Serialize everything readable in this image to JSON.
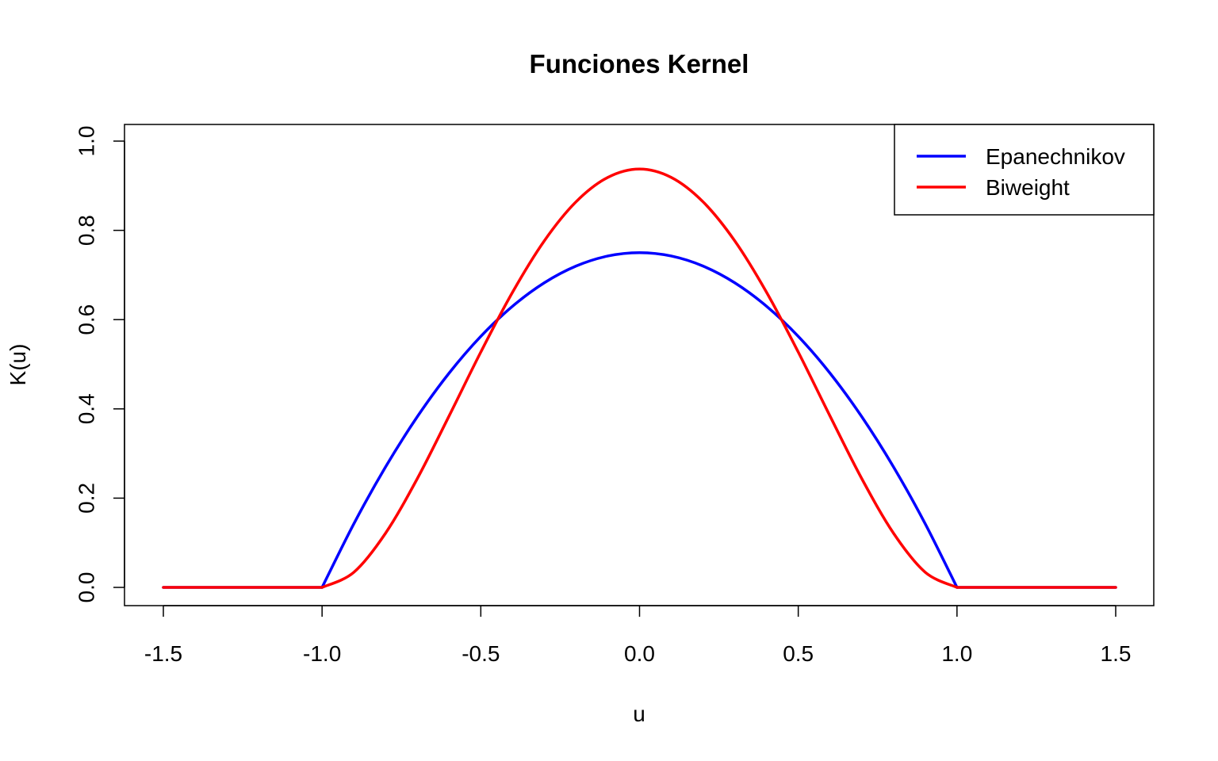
{
  "chart_data": {
    "type": "line",
    "title": "Funciones Kernel",
    "xlabel": "u",
    "ylabel": "K(u)",
    "xlim": [
      -1.5,
      1.5
    ],
    "ylim": [
      0,
      1
    ],
    "x_ticks": [
      "-1.5",
      "-1.0",
      "-0.5",
      "0.0",
      "0.5",
      "1.0",
      "1.5"
    ],
    "y_ticks": [
      "0.0",
      "0.2",
      "0.4",
      "0.6",
      "0.8",
      "1.0"
    ],
    "grid": false,
    "legend_position": "top-right",
    "x": [
      -1.5,
      -1.25,
      -1.0,
      -0.9,
      -0.8,
      -0.7,
      -0.6,
      -0.5,
      -0.4,
      -0.3,
      -0.2,
      -0.1,
      0.0,
      0.1,
      0.2,
      0.3,
      0.4,
      0.5,
      0.6,
      0.7,
      0.8,
      0.9,
      1.0,
      1.25,
      1.5
    ],
    "series": [
      {
        "name": "Epanechnikov",
        "color": "#0000ff",
        "values": [
          0,
          0,
          0,
          0.1425,
          0.27,
          0.3825,
          0.48,
          0.5625,
          0.63,
          0.6825,
          0.72,
          0.7425,
          0.75,
          0.7425,
          0.72,
          0.6825,
          0.63,
          0.5625,
          0.48,
          0.3825,
          0.27,
          0.1425,
          0,
          0,
          0
        ]
      },
      {
        "name": "Biweight",
        "color": "#ff0000",
        "values": [
          0,
          0,
          0,
          0.0339,
          0.1215,
          0.2438,
          0.384,
          0.5273,
          0.6615,
          0.7765,
          0.864,
          0.9187,
          0.9375,
          0.9187,
          0.864,
          0.7765,
          0.6615,
          0.5273,
          0.384,
          0.2438,
          0.1215,
          0.0339,
          0,
          0,
          0
        ]
      }
    ]
  }
}
